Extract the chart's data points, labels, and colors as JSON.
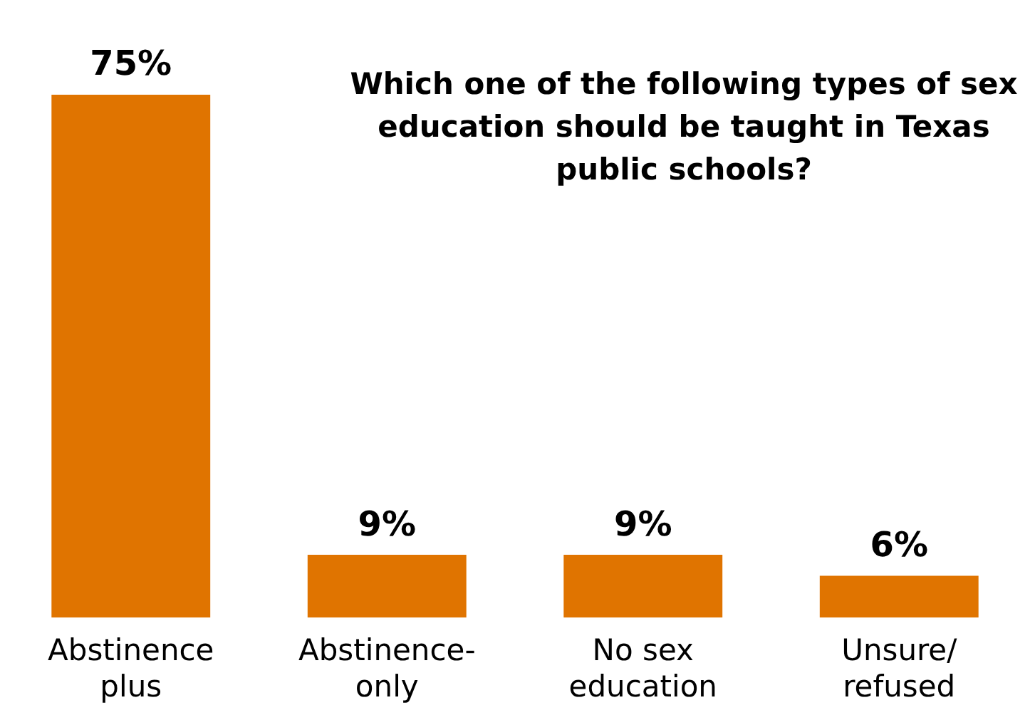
{
  "chart_data": {
    "type": "bar",
    "title": "Which one of the following types of sex education should be taught in Texas public schools?",
    "categories": [
      "Abstinence plus",
      "Abstinence-only",
      "No sex education",
      "Unsure/refused"
    ],
    "values": [
      75,
      9,
      9,
      6
    ],
    "value_labels": [
      "75%",
      "9%",
      "9%",
      "6%"
    ],
    "color": "#e07400"
  }
}
